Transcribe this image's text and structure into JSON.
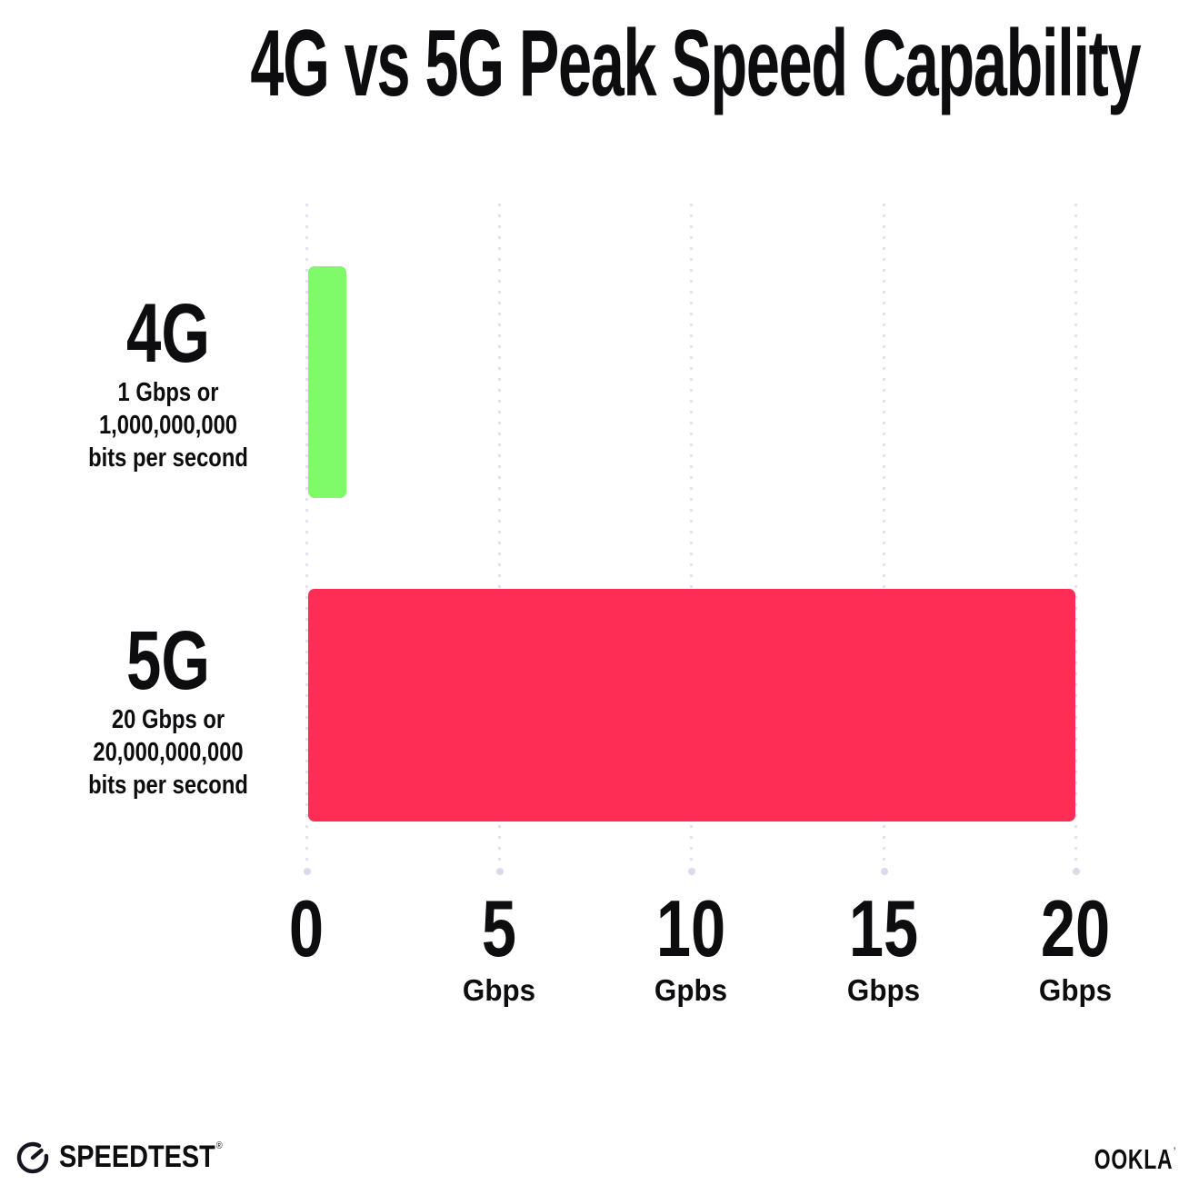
{
  "title": "4G vs 5G Peak Speed Capability",
  "chart_data": {
    "type": "bar",
    "orientation": "horizontal",
    "title": "4G vs 5G Peak Speed Capability",
    "categories": [
      "4G",
      "5G"
    ],
    "values": [
      1,
      20
    ],
    "value_unit": "Gbps",
    "xlim": [
      0,
      20
    ],
    "x_tick_values": [
      0,
      5,
      10,
      15,
      20
    ],
    "x_tick_unit_labels": [
      "",
      "Gbps",
      "Gpbs",
      "Gbps",
      "Gbps"
    ],
    "bar_colors": [
      "#7ffa68",
      "#fd2d55"
    ],
    "grid": "vertical dotted gridlines at each tick",
    "legend": "none",
    "annotations": [
      "4G: 1 Gbps or 1,000,000,000 bits per second",
      "5G: 20 Gbps or 20,000,000,000 bits per second"
    ]
  },
  "rows": [
    {
      "label": "4G",
      "sub_line1": "1 Gbps or",
      "sub_line2": "1,000,000,000",
      "sub_line3": "bits per second"
    },
    {
      "label": "5G",
      "sub_line1": "20 Gbps or",
      "sub_line2": "20,000,000,000",
      "sub_line3": "bits per second"
    }
  ],
  "x_ticks": [
    {
      "value": "0",
      "unit": ""
    },
    {
      "value": "5",
      "unit": "Gbps"
    },
    {
      "value": "10",
      "unit": "Gpbs"
    },
    {
      "value": "15",
      "unit": "Gbps"
    },
    {
      "value": "20",
      "unit": "Gbps"
    }
  ],
  "footer": {
    "speedtest_label": "SPEEDTEST",
    "speedtest_trademark": "®",
    "ookla_label": "OOKLA",
    "ookla_trademark": "’"
  },
  "colors": {
    "bar_4g": "#7ffa68",
    "bar_5g": "#fd2d55",
    "text": "#0d0d10",
    "gridline": "#e3e3ef",
    "background": "#ffffff"
  }
}
